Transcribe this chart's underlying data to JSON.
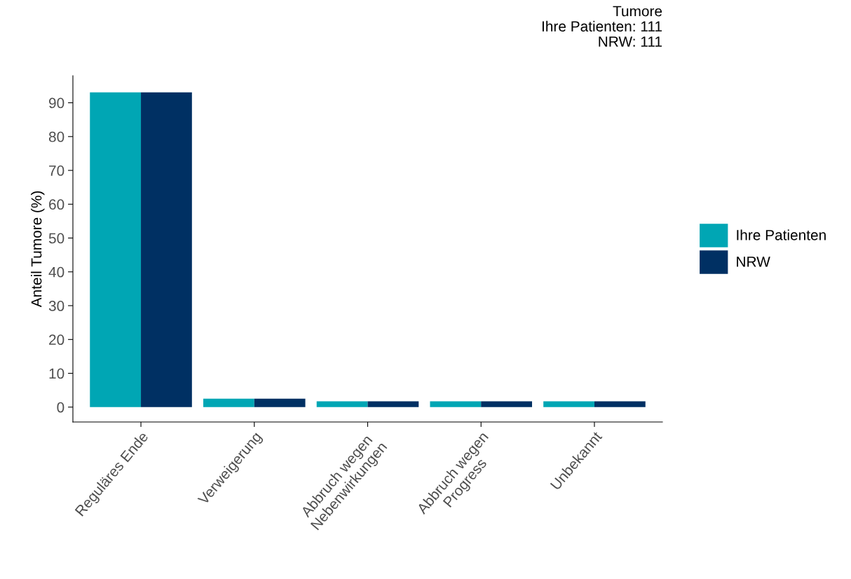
{
  "chart_data": {
    "type": "bar",
    "title": "Tumore",
    "annotations": [
      "Ihre Patienten: 111",
      "NRW: 111"
    ],
    "ylabel": "Anteil Tumore (%)",
    "categories": [
      "Reguläres Ende",
      "Verweigerung",
      "Abbruch wegen\nNebenwirkungen",
      "Abbruch wegen\nProgress",
      "Unbekannt"
    ],
    "series": [
      {
        "name": "Ihre Patienten",
        "color": "#00a6b4",
        "values": [
          93.1,
          2.5,
          1.7,
          1.7,
          1.7
        ]
      },
      {
        "name": "NRW",
        "color": "#003063",
        "values": [
          93.1,
          2.5,
          1.7,
          1.7,
          1.7
        ]
      }
    ],
    "ylim": [
      -4.4,
      98
    ],
    "yticks": [
      0,
      10,
      20,
      30,
      40,
      50,
      60,
      70,
      80,
      90
    ],
    "grid": false,
    "legend": "right"
  }
}
